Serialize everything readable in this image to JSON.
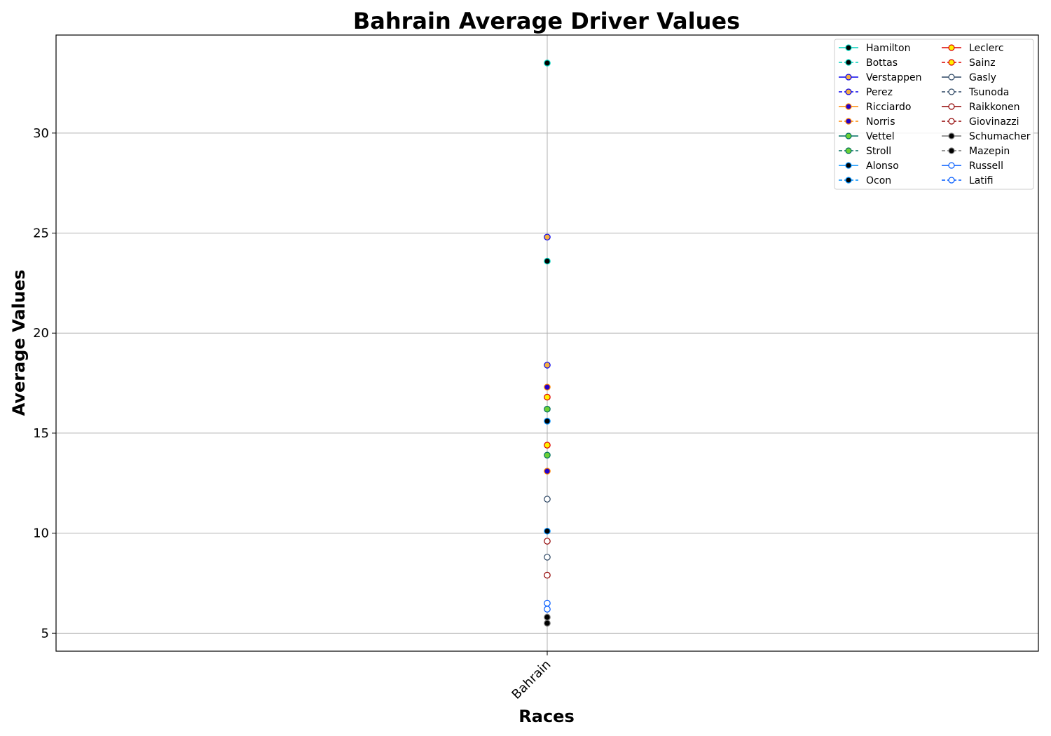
{
  "chart_data": {
    "type": "line",
    "title": "Bahrain Average Driver Values",
    "xlabel": "Races",
    "ylabel": "Average Values",
    "categories": [
      "Bahrain"
    ],
    "ylim": [
      4.1,
      34.9
    ],
    "yticks": [
      5,
      10,
      15,
      20,
      25,
      30
    ],
    "grid": true,
    "legend": "top-right",
    "legend_columns": 2,
    "series": [
      {
        "name": "Hamilton",
        "values": [
          33.5
        ],
        "line_color": "#00d2be",
        "dash": "solid",
        "marker_fill": "#000000",
        "marker_edge": "#00d2be"
      },
      {
        "name": "Bottas",
        "values": [
          23.6
        ],
        "line_color": "#00d2be",
        "dash": "dashed",
        "marker_fill": "#000000",
        "marker_edge": "#00d2be"
      },
      {
        "name": "Verstappen",
        "values": [
          24.8
        ],
        "line_color": "#0600ef",
        "dash": "solid",
        "marker_fill": "#f5b041",
        "marker_edge": "#0600ef"
      },
      {
        "name": "Perez",
        "values": [
          18.4
        ],
        "line_color": "#0600ef",
        "dash": "dashed",
        "marker_fill": "#f5b041",
        "marker_edge": "#0600ef"
      },
      {
        "name": "Ricciardo",
        "values": [
          17.3
        ],
        "line_color": "#ff8700",
        "dash": "solid",
        "marker_fill": "#2200cc",
        "marker_edge": "#ff8700"
      },
      {
        "name": "Norris",
        "values": [
          13.1
        ],
        "line_color": "#ff8700",
        "dash": "dashed",
        "marker_fill": "#2200cc",
        "marker_edge": "#ff8700"
      },
      {
        "name": "Vettel",
        "values": [
          16.2
        ],
        "line_color": "#006f62",
        "dash": "solid",
        "marker_fill": "#6cd035",
        "marker_edge": "#006f62"
      },
      {
        "name": "Stroll",
        "values": [
          13.9
        ],
        "line_color": "#006f62",
        "dash": "dashed",
        "marker_fill": "#6cd035",
        "marker_edge": "#006f62"
      },
      {
        "name": "Alonso",
        "values": [
          15.6
        ],
        "line_color": "#0090ff",
        "dash": "solid",
        "marker_fill": "#000000",
        "marker_edge": "#0090ff"
      },
      {
        "name": "Ocon",
        "values": [
          10.1
        ],
        "line_color": "#0090ff",
        "dash": "dashed",
        "marker_fill": "#000000",
        "marker_edge": "#0090ff"
      },
      {
        "name": "Leclerc",
        "values": [
          16.8
        ],
        "line_color": "#dc0000",
        "dash": "solid",
        "marker_fill": "#fff200",
        "marker_edge": "#dc0000"
      },
      {
        "name": "Sainz",
        "values": [
          14.4
        ],
        "line_color": "#dc0000",
        "dash": "dashed",
        "marker_fill": "#fff200",
        "marker_edge": "#dc0000"
      },
      {
        "name": "Gasly",
        "values": [
          11.7
        ],
        "line_color": "#2b4562",
        "dash": "solid",
        "marker_fill": "#ffffff",
        "marker_edge": "#2b4562"
      },
      {
        "name": "Tsunoda",
        "values": [
          8.8
        ],
        "line_color": "#2b4562",
        "dash": "dashed",
        "marker_fill": "#ffffff",
        "marker_edge": "#2b4562"
      },
      {
        "name": "Raikkonen",
        "values": [
          9.6
        ],
        "line_color": "#900000",
        "dash": "solid",
        "marker_fill": "#ffffff",
        "marker_edge": "#900000"
      },
      {
        "name": "Giovinazzi",
        "values": [
          7.9
        ],
        "line_color": "#900000",
        "dash": "dashed",
        "marker_fill": "#ffffff",
        "marker_edge": "#900000"
      },
      {
        "name": "Schumacher",
        "values": [
          5.5
        ],
        "line_color": "#777777",
        "dash": "solid",
        "marker_fill": "#000000",
        "marker_edge": "#777777"
      },
      {
        "name": "Mazepin",
        "values": [
          5.8
        ],
        "line_color": "#777777",
        "dash": "dashed",
        "marker_fill": "#000000",
        "marker_edge": "#777777"
      },
      {
        "name": "Russell",
        "values": [
          6.5
        ],
        "line_color": "#005aff",
        "dash": "solid",
        "marker_fill": "#ffffff",
        "marker_edge": "#005aff"
      },
      {
        "name": "Latifi",
        "values": [
          6.2
        ],
        "line_color": "#005aff",
        "dash": "dashed",
        "marker_fill": "#ffffff",
        "marker_edge": "#005aff"
      }
    ]
  }
}
